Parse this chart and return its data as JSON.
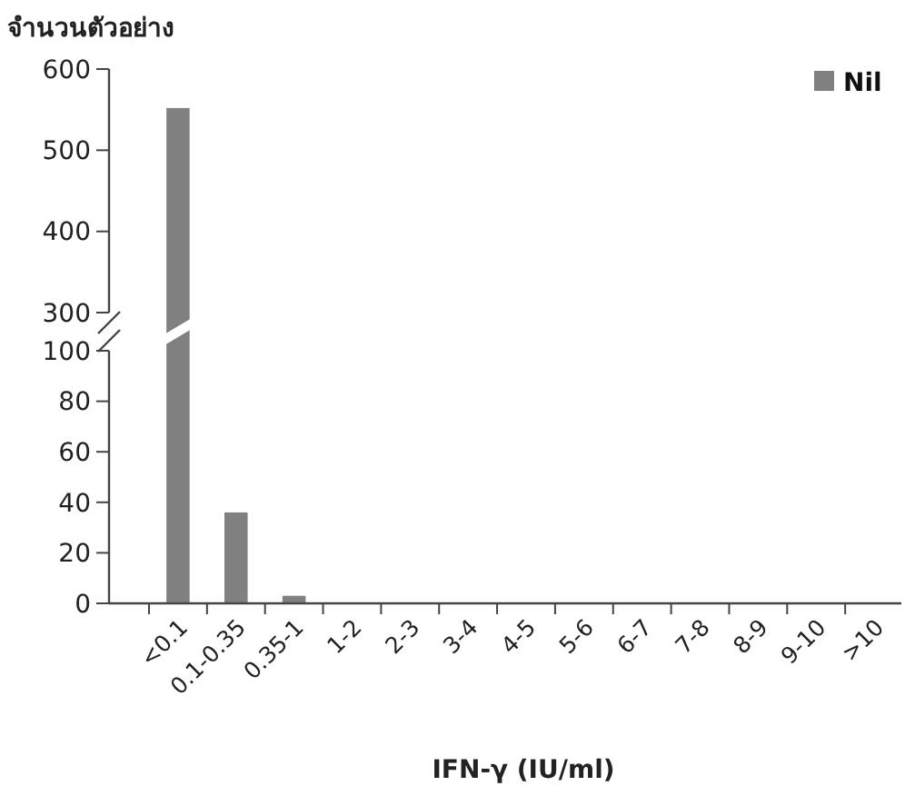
{
  "chart_data": [
    {
      "type": "bar",
      "ylabel": "จำนวนตัวอย่าง",
      "categories": [
        null
      ],
      "series": [
        {
          "name": "Nil",
          "color": "#808080",
          "values": [
            552
          ]
        }
      ],
      "ylim": [
        300,
        600
      ],
      "yticks": [
        300,
        400,
        500,
        600
      ],
      "tick_labels": "y",
      "legend": "top right",
      "grid": false
    },
    {
      "type": "bar",
      "xlabel": "IFN-γ (IU/ml)",
      "categories": [
        "<0.1",
        "0.1-0.35",
        "0.35-1",
        "1-2",
        "2-3",
        "3-4",
        "4-5",
        "5-6",
        "6-7",
        "7-8",
        "8-9",
        "9-10",
        ">10"
      ],
      "series": [
        {
          "color": "#808080",
          "values": [
            null,
            36,
            3,
            0,
            0,
            0,
            0,
            0,
            0,
            0,
            0,
            0,
            0
          ]
        }
      ],
      "ylim": [
        0,
        100
      ],
      "yticks": [
        0,
        20,
        40,
        60,
        80,
        100
      ],
      "grid": false
    }
  ]
}
